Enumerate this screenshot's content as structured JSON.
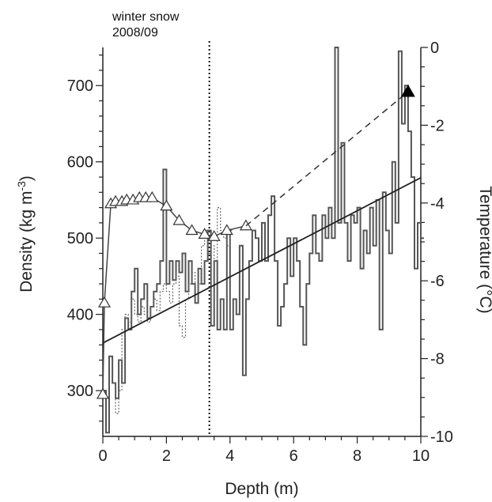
{
  "chart_data": {
    "type": "line",
    "annotation": [
      "winter snow",
      "2008/09"
    ],
    "annotation_line_x": 3.35,
    "xlabel": "Depth (m)",
    "ylabel": "Density (kg m",
    "ylabel_sup": "-3",
    "ylabel_end": ")",
    "y2label": "Temperature (°C)",
    "xlim": [
      0,
      10
    ],
    "ylim": [
      240,
      750
    ],
    "y2lim": [
      -10,
      0
    ],
    "x_ticks": [
      "0",
      "2",
      "4",
      "6",
      "8",
      "10"
    ],
    "y_ticks": [
      "300",
      "400",
      "500",
      "600",
      "700"
    ],
    "y2_ticks": [
      "0",
      "-2",
      "-4",
      "-6",
      "-8",
      "-10"
    ],
    "grid": false,
    "legend": "none",
    "series": [
      {
        "style": "step-solid",
        "axis": "left",
        "points": [
          [
            0.0,
            300
          ],
          [
            0.1,
            245
          ],
          [
            0.2,
            345
          ],
          [
            0.3,
            310
          ],
          [
            0.4,
            290
          ],
          [
            0.5,
            340
          ],
          [
            0.6,
            310
          ],
          [
            0.7,
            395
          ],
          [
            0.8,
            380
          ],
          [
            0.9,
            430
          ],
          [
            1.0,
            460
          ],
          [
            1.1,
            400
          ],
          [
            1.2,
            420
          ],
          [
            1.3,
            440
          ],
          [
            1.4,
            395
          ],
          [
            1.5,
            410
          ],
          [
            1.6,
            430
          ],
          [
            1.7,
            440
          ],
          [
            1.8,
            470
          ],
          [
            1.9,
            590
          ],
          [
            2.0,
            440
          ],
          [
            2.1,
            470
          ],
          [
            2.2,
            445
          ],
          [
            2.3,
            470
          ],
          [
            2.4,
            455
          ],
          [
            2.5,
            480
          ],
          [
            2.6,
            430
          ],
          [
            2.7,
            470
          ],
          [
            2.8,
            440
          ],
          [
            2.9,
            415
          ],
          [
            3.0,
            460
          ],
          [
            3.1,
            440
          ],
          [
            3.2,
            470
          ],
          [
            3.3,
            510
          ],
          [
            3.4,
            385
          ],
          [
            3.5,
            470
          ],
          [
            3.6,
            380
          ],
          [
            3.7,
            420
          ],
          [
            3.8,
            380
          ],
          [
            3.9,
            510
          ],
          [
            4.0,
            380
          ],
          [
            4.1,
            420
          ],
          [
            4.2,
            400
          ],
          [
            4.3,
            490
          ],
          [
            4.4,
            320
          ],
          [
            4.5,
            420
          ],
          [
            4.6,
            470
          ],
          [
            4.7,
            510
          ],
          [
            4.8,
            500
          ],
          [
            4.9,
            470
          ],
          [
            5.0,
            520
          ],
          [
            5.1,
            470
          ],
          [
            5.2,
            530
          ],
          [
            5.3,
            555
          ],
          [
            5.4,
            470
          ],
          [
            5.5,
            385
          ],
          [
            5.6,
            410
          ],
          [
            5.7,
            440
          ],
          [
            5.8,
            500
          ],
          [
            5.9,
            450
          ],
          [
            6.0,
            500
          ],
          [
            6.1,
            470
          ],
          [
            6.2,
            410
          ],
          [
            6.3,
            360
          ],
          [
            6.4,
            440
          ],
          [
            6.5,
            480
          ],
          [
            6.6,
            530
          ],
          [
            6.7,
            480
          ],
          [
            6.8,
            470
          ],
          [
            6.9,
            530
          ],
          [
            7.0,
            500
          ],
          [
            7.1,
            540
          ],
          [
            7.2,
            500
          ],
          [
            7.3,
            750
          ],
          [
            7.4,
            520
          ],
          [
            7.5,
            625
          ],
          [
            7.6,
            520
          ],
          [
            7.7,
            470
          ],
          [
            7.8,
            530
          ],
          [
            7.9,
            520
          ],
          [
            8.0,
            540
          ],
          [
            8.1,
            460
          ],
          [
            8.2,
            510
          ],
          [
            8.3,
            480
          ],
          [
            8.4,
            540
          ],
          [
            8.5,
            490
          ],
          [
            8.6,
            550
          ],
          [
            8.7,
            380
          ],
          [
            8.8,
            560
          ],
          [
            8.9,
            510
          ],
          [
            9.0,
            480
          ],
          [
            9.1,
            600
          ],
          [
            9.2,
            520
          ],
          [
            9.3,
            745
          ],
          [
            9.4,
            650
          ],
          [
            9.5,
            700
          ],
          [
            9.6,
            640
          ],
          [
            9.7,
            580
          ],
          [
            9.8,
            460
          ],
          [
            9.9,
            520
          ],
          [
            10.0,
            500
          ]
        ]
      },
      {
        "style": "step-dotted",
        "axis": "left",
        "points": [
          [
            0.3,
            310
          ],
          [
            0.4,
            270
          ],
          [
            0.5,
            300
          ],
          [
            0.6,
            380
          ],
          [
            0.7,
            400
          ],
          [
            0.8,
            390
          ],
          [
            0.9,
            420
          ],
          [
            1.0,
            400
          ],
          [
            1.1,
            390
          ],
          [
            1.2,
            410
          ],
          [
            1.3,
            400
          ],
          [
            1.4,
            390
          ],
          [
            1.5,
            410
          ],
          [
            1.6,
            420
          ],
          [
            1.7,
            405
          ],
          [
            1.8,
            430
          ],
          [
            1.9,
            440
          ],
          [
            2.0,
            430
          ],
          [
            2.1,
            415
          ],
          [
            2.2,
            440
          ],
          [
            2.3,
            450
          ],
          [
            2.4,
            385
          ],
          [
            2.5,
            370
          ],
          [
            2.6,
            420
          ],
          [
            2.7,
            440
          ],
          [
            2.8,
            455
          ],
          [
            2.9,
            430
          ],
          [
            3.0,
            440
          ],
          [
            3.1,
            490
          ],
          [
            3.2,
            510
          ],
          [
            3.3,
            480
          ],
          [
            3.4,
            490
          ],
          [
            3.5,
            470
          ],
          [
            3.6,
            540
          ],
          [
            3.7,
            510
          ],
          [
            3.8,
            500
          ],
          [
            3.9,
            490
          ],
          [
            4.0,
            510
          ]
        ]
      },
      {
        "style": "line-triangles",
        "axis": "left",
        "points": [
          [
            0.0,
            295
          ],
          [
            0.05,
            415
          ],
          [
            0.25,
            545
          ],
          [
            0.4,
            548
          ],
          [
            0.6,
            548
          ],
          [
            0.75,
            550
          ],
          [
            0.95,
            550
          ],
          [
            1.15,
            553
          ],
          [
            1.35,
            553
          ],
          [
            1.55,
            553
          ],
          [
            2.0,
            542
          ],
          [
            2.4,
            523
          ],
          [
            2.8,
            510
          ],
          [
            3.2,
            505
          ],
          [
            3.5,
            502
          ],
          [
            3.9,
            510
          ],
          [
            4.5,
            516
          ]
        ]
      },
      {
        "style": "dashed",
        "axis": "left",
        "points": [
          [
            4.5,
            516
          ],
          [
            9.6,
            692
          ]
        ]
      },
      {
        "style": "marker-filled-triangle",
        "axis": "left",
        "points": [
          [
            9.6,
            692
          ]
        ]
      },
      {
        "style": "solid-trend",
        "axis": "right",
        "points": [
          [
            0.0,
            -7.6
          ],
          [
            10.0,
            -3.35
          ]
        ]
      }
    ]
  }
}
